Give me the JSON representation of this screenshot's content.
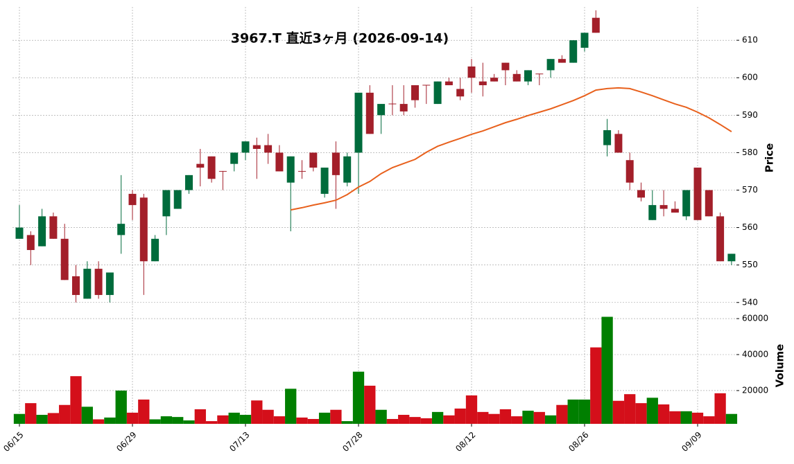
{
  "chart_data": {
    "type": "candlestick",
    "title": "3967.T  直近3ヶ月  (2026-09-14)",
    "ylabel": "Price",
    "categories": [
      "06/15",
      null,
      null,
      null,
      null,
      null,
      null,
      null,
      null,
      null,
      "06/29",
      null,
      null,
      null,
      null,
      null,
      null,
      null,
      null,
      null,
      "07/13",
      null,
      null,
      null,
      null,
      null,
      null,
      null,
      null,
      null,
      "07/28",
      null,
      null,
      null,
      null,
      null,
      null,
      null,
      null,
      null,
      "08/12",
      null,
      null,
      null,
      null,
      null,
      null,
      null,
      null,
      null,
      "08/26",
      null,
      null,
      null,
      null,
      null,
      null,
      null,
      null,
      null,
      "09/09",
      null,
      null,
      null
    ],
    "open": [
      557,
      558,
      555,
      563,
      557,
      547,
      541,
      549,
      542,
      558,
      569,
      568,
      551,
      563,
      565,
      570,
      577,
      579,
      575.1,
      577,
      580,
      582,
      582,
      580,
      572,
      575.1,
      580,
      569,
      580,
      572,
      580,
      596,
      590,
      593.1,
      593,
      598,
      598.1,
      593,
      599,
      597,
      603,
      599,
      600,
      604,
      601,
      599,
      601.1,
      602,
      605,
      604,
      608,
      616,
      582,
      585,
      578,
      570,
      562,
      566,
      565,
      563,
      576,
      570,
      563,
      551
    ],
    "high": [
      566,
      559,
      565,
      564,
      561,
      550,
      551,
      551,
      548,
      574,
      570,
      569,
      558,
      570,
      570,
      574,
      581,
      579,
      575.1,
      580,
      583,
      584,
      585,
      582,
      579,
      578,
      580,
      576,
      583,
      580,
      596,
      598,
      593,
      598,
      598,
      598,
      598,
      599,
      600,
      600,
      605,
      604,
      601,
      604,
      602,
      602,
      601.1,
      605,
      606,
      610,
      612,
      618,
      589,
      586,
      580,
      572,
      570,
      570,
      567,
      570,
      576,
      570,
      564,
      553
    ],
    "low": [
      557,
      550,
      555,
      557,
      546,
      540,
      541,
      541,
      540,
      553,
      562,
      542,
      551,
      558,
      565,
      569,
      571,
      572,
      570,
      575,
      578,
      573,
      577,
      575,
      559,
      573,
      575,
      568,
      565,
      571,
      569,
      585,
      585,
      590,
      590,
      592,
      593,
      593,
      598,
      594,
      596,
      595,
      599,
      598,
      599,
      598,
      598,
      600,
      604,
      604,
      607,
      612,
      579,
      580,
      570,
      567,
      562,
      563,
      564,
      562,
      562,
      563,
      551,
      550
    ],
    "close": [
      560,
      554,
      563,
      557,
      546,
      542,
      549,
      542,
      548,
      561,
      566,
      551,
      557,
      570,
      570,
      574,
      576,
      573,
      575,
      580,
      583,
      581,
      580,
      575,
      579,
      575,
      576,
      576,
      574,
      579,
      596,
      585,
      593,
      593,
      591,
      594,
      598,
      599,
      598,
      595,
      600,
      598,
      599,
      602,
      599,
      602,
      601,
      605,
      604,
      610,
      612,
      612,
      586,
      580,
      572,
      568,
      566,
      565,
      564,
      570,
      562,
      563,
      551,
      553
    ],
    "up_color": "#006b3c",
    "down_color": "#a31f2a",
    "moving_average": {
      "color": "#e8601c",
      "values": [
        null,
        null,
        null,
        null,
        null,
        null,
        null,
        null,
        null,
        null,
        null,
        null,
        null,
        null,
        null,
        null,
        null,
        null,
        null,
        null,
        null,
        null,
        null,
        null,
        564.7,
        565.3,
        566,
        566.6,
        567.3,
        568.8,
        570.8,
        572.3,
        574.4,
        576,
        577.1,
        578.2,
        580.1,
        581.7,
        582.8,
        583.8,
        584.9,
        585.8,
        586.9,
        588,
        588.9,
        589.9,
        590.8,
        591.7,
        592.8,
        593.9,
        595.2,
        596.7,
        597.1,
        597.3,
        597.1,
        596.2,
        595.2,
        594.1,
        593,
        592.1,
        590.8,
        589.3,
        587.5,
        585.6
      ]
    },
    "ylim": [
      539.4,
      618.9
    ],
    "yticks": [
      540,
      550,
      560,
      570,
      580,
      590,
      600,
      610
    ],
    "grid": true,
    "volume": {
      "ylabel": "Volume",
      "up_color": "#007f00",
      "down_color": "#d40f1a",
      "values": [
        7000,
        13000,
        6500,
        7500,
        12000,
        28000,
        11000,
        4000,
        5000,
        20000,
        7700,
        15000,
        4000,
        5700,
        5300,
        3400,
        9600,
        3000,
        6200,
        7700,
        6500,
        14500,
        9300,
        5700,
        21000,
        5000,
        4200,
        7700,
        9300,
        3000,
        30500,
        22700,
        9300,
        4200,
        6500,
        5300,
        4600,
        8100,
        6200,
        10000,
        17300,
        8100,
        7000,
        9600,
        5700,
        8800,
        8100,
        6200,
        12000,
        15000,
        15000,
        44000,
        61000,
        14300,
        18000,
        13000,
        16000,
        12300,
        8500,
        8500,
        7700,
        5700,
        18500,
        7000
      ],
      "ylim": [
        1500,
        65800
      ],
      "yticks": [
        20000,
        40000,
        60000
      ]
    }
  }
}
